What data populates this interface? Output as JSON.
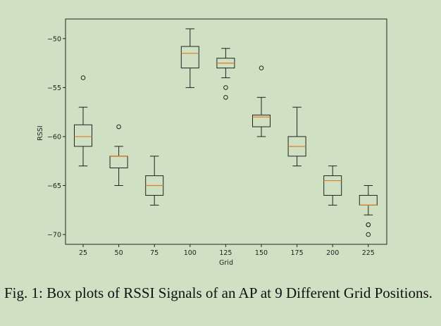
{
  "chart_data": {
    "type": "box",
    "xlabel": "Grid",
    "ylabel": "RSSI",
    "ylim": [
      -71,
      -48
    ],
    "yticks": [
      -70,
      -65,
      -60,
      -55,
      -50
    ],
    "ytick_labels": [
      "−70",
      "−65",
      "−60",
      "−55",
      "−50"
    ],
    "categories": [
      "25",
      "50",
      "75",
      "100",
      "125",
      "150",
      "175",
      "200",
      "225"
    ],
    "boxes": [
      {
        "category": "25",
        "whisker_low": -63,
        "q1": -61,
        "median": -60,
        "q3": -58.8,
        "whisker_high": -57,
        "outliers": [
          -54
        ]
      },
      {
        "category": "50",
        "whisker_low": -65,
        "q1": -63.2,
        "median": -62,
        "q3": -62,
        "whisker_high": -61,
        "outliers": [
          -59
        ]
      },
      {
        "category": "75",
        "whisker_low": -67,
        "q1": -66,
        "median": -65,
        "q3": -64,
        "whisker_high": -62,
        "outliers": []
      },
      {
        "category": "100",
        "whisker_low": -55,
        "q1": -53,
        "median": -51.5,
        "q3": -50.8,
        "whisker_high": -49,
        "outliers": []
      },
      {
        "category": "125",
        "whisker_low": -54,
        "q1": -53,
        "median": -52.5,
        "q3": -52,
        "whisker_high": -51,
        "outliers": [
          -55,
          -56
        ]
      },
      {
        "category": "150",
        "whisker_low": -60,
        "q1": -59,
        "median": -58,
        "q3": -57.8,
        "whisker_high": -56,
        "outliers": [
          -53
        ]
      },
      {
        "category": "175",
        "whisker_low": -63,
        "q1": -62,
        "median": -61,
        "q3": -60,
        "whisker_high": -57,
        "outliers": []
      },
      {
        "category": "200",
        "whisker_low": -67,
        "q1": -66,
        "median": -64.5,
        "q3": -64,
        "whisker_high": -63,
        "outliers": []
      },
      {
        "category": "225",
        "whisker_low": -68,
        "q1": -67,
        "median": -67,
        "q3": -66,
        "whisker_high": -65,
        "outliers": [
          -69,
          -69,
          -70
        ]
      }
    ],
    "colors": {
      "box": "#222222",
      "median": "#e07b28",
      "background": "#cfe0c3"
    },
    "grid": false
  },
  "caption": "Fig. 1: Box plots of RSSI Signals of an AP at 9 Different Grid Positions."
}
